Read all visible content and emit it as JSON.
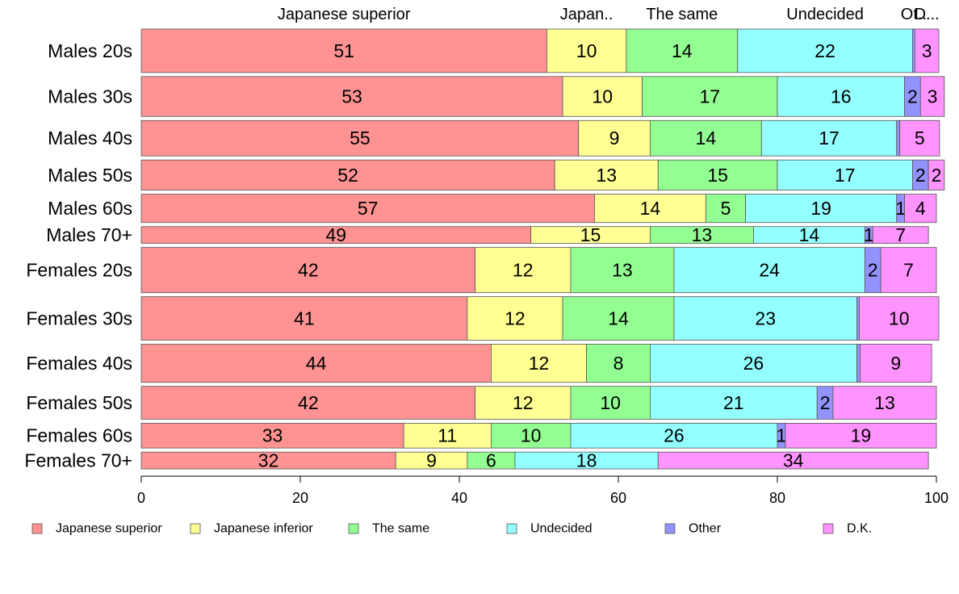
{
  "chart_data": {
    "type": "bar",
    "orientation": "horizontal",
    "stacked": true,
    "variable_width": true,
    "categories": [
      "Males 20s",
      "Males 30s",
      "Males 40s",
      "Males 50s",
      "Males 60s",
      "Males 70+",
      "Females 20s",
      "Females 30s",
      "Females 40s",
      "Females 50s",
      "Females 60s",
      "Females 70+"
    ],
    "bar_width_weights": [
      49,
      45,
      40,
      34,
      32,
      19,
      51,
      49,
      43,
      37,
      28,
      19
    ],
    "series": [
      {
        "name": "Japanese superior",
        "top_label": "Japanese superior",
        "color": "#ff9393",
        "values": [
          51,
          53,
          55,
          52,
          57,
          49,
          42,
          41,
          44,
          42,
          33,
          32
        ],
        "labels": [
          "51",
          "53",
          "55",
          "52",
          "57",
          "49",
          "42",
          "41",
          "44",
          "42",
          "33",
          "32"
        ]
      },
      {
        "name": "Japanese inferior",
        "top_label": "Japan..",
        "color": "#ffff93",
        "values": [
          10,
          10,
          9,
          13,
          14,
          15,
          12,
          12,
          12,
          12,
          11,
          9
        ],
        "labels": [
          "10",
          "10",
          "9",
          "13",
          "14",
          "15",
          "12",
          "12",
          "12",
          "12",
          "11",
          "9"
        ]
      },
      {
        "name": "The same",
        "top_label": "The same",
        "color": "#93ff93",
        "values": [
          14,
          17,
          14,
          15,
          5,
          13,
          13,
          14,
          8,
          10,
          10,
          6
        ],
        "labels": [
          "14",
          "17",
          "14",
          "15",
          "5",
          "13",
          "13",
          "14",
          "8",
          "10",
          "10",
          "6"
        ]
      },
      {
        "name": "Undecided",
        "top_label": "Undecided",
        "color": "#93ffff",
        "values": [
          22,
          16,
          17,
          17,
          19,
          14,
          24,
          23,
          26,
          21,
          26,
          18
        ],
        "labels": [
          "22",
          "16",
          "17",
          "17",
          "19",
          "14",
          "24",
          "23",
          "26",
          "21",
          "26",
          "18"
        ]
      },
      {
        "name": "Other",
        "top_label": "Ot..",
        "color": "#9393ff",
        "values": [
          0.3,
          2,
          0.4,
          2,
          1,
          1,
          2,
          0.3,
          0.4,
          2,
          1,
          0
        ],
        "labels": [
          "",
          "2",
          "",
          "2",
          "1",
          "1",
          "2",
          "",
          "",
          "2",
          "1",
          ""
        ]
      },
      {
        "name": "D.K.",
        "top_label": "D...",
        "color": "#ff93ff",
        "values": [
          3,
          3,
          5,
          2,
          4,
          7,
          7,
          10,
          9,
          13,
          19,
          34
        ],
        "labels": [
          "3",
          "3",
          "5",
          "2",
          "4",
          "7",
          "7",
          "10",
          "9",
          "13",
          "19",
          "34"
        ]
      }
    ],
    "x_ticks": [
      "0",
      "20",
      "40",
      "60",
      "80",
      "100"
    ],
    "xlim": [
      0,
      100
    ],
    "grid": false,
    "legend_position": "bottom",
    "title": "",
    "xlabel": "",
    "ylabel": ""
  }
}
